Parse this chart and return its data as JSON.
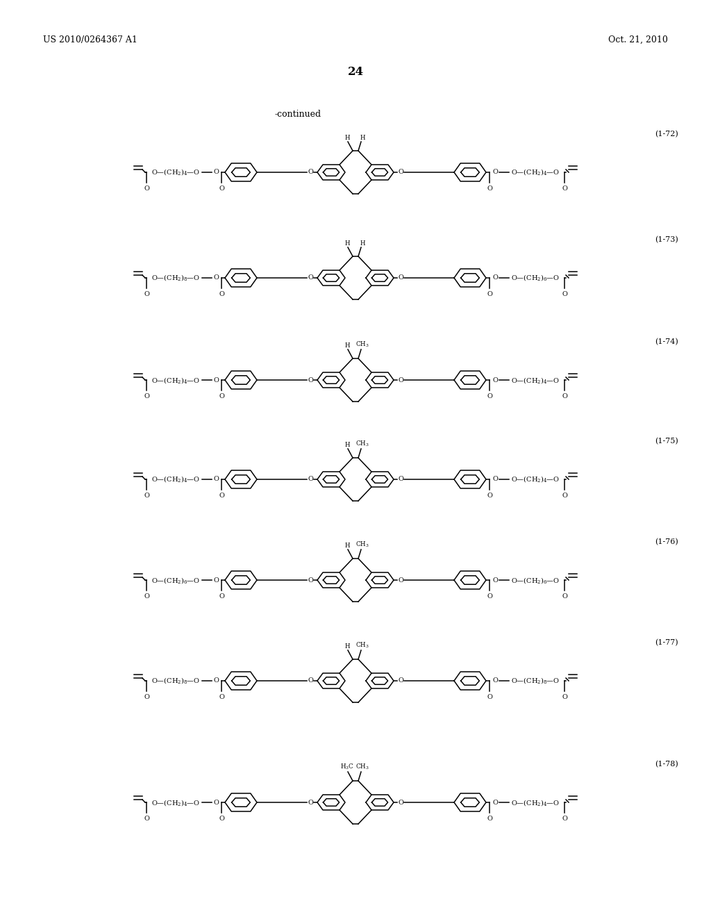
{
  "page_number": "24",
  "patent_left": "US 2010/0264367 A1",
  "patent_right": "Oct. 21, 2010",
  "continued_label": "-continued",
  "background_color": "#ffffff",
  "text_color": "#000000",
  "compounds": [
    {
      "label": "(1-72)",
      "sub1": "H",
      "sub2": "H",
      "nl": "4",
      "nr": "4"
    },
    {
      "label": "(1-73)",
      "sub1": "H",
      "sub2": "H",
      "nl": "8",
      "nr": "6"
    },
    {
      "label": "(1-74)",
      "sub1": "H",
      "sub2": "CH$_3$",
      "nl": "4",
      "nr": "4"
    },
    {
      "label": "(1-75)",
      "sub1": "H",
      "sub2": "CH$_3$",
      "nl": "4",
      "nr": "4"
    },
    {
      "label": "(1-76)",
      "sub1": "H",
      "sub2": "CH$_3$",
      "nl": "6",
      "nr": "6"
    },
    {
      "label": "(1-77)",
      "sub1": "H",
      "sub2": "CH$_3$",
      "nl": "8",
      "nr": "8"
    },
    {
      "label": "(1-78)",
      "sub1": "H$_3$C",
      "sub2": "CH$_3$",
      "nl": "4",
      "nr": "4"
    }
  ]
}
